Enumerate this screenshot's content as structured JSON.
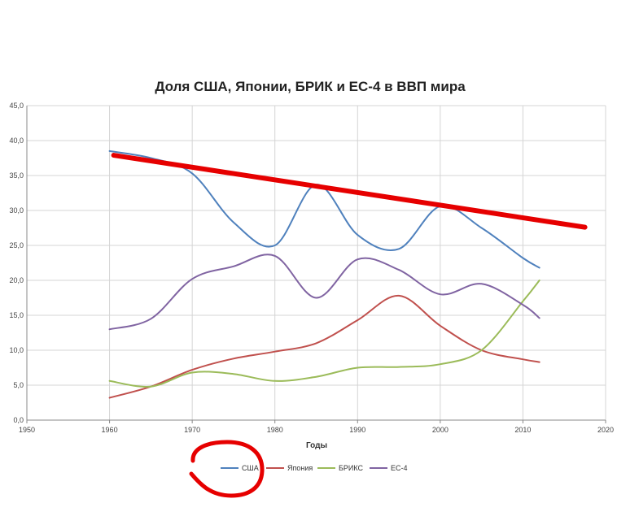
{
  "chart_data": {
    "type": "line",
    "title": "Доля США, Японии, БРИК и ЕС-4 в ВВП мира",
    "xlabel": "Годы",
    "ylabel": "",
    "xlim": [
      1950,
      2020
    ],
    "ylim": [
      0,
      45
    ],
    "x_ticks": [
      "1950",
      "1960",
      "1970",
      "1980",
      "1990",
      "2000",
      "2010",
      "2020"
    ],
    "y_ticks": [
      "0,0",
      "5,0",
      "10,0",
      "15,0",
      "20,0",
      "25,0",
      "30,0",
      "35,0",
      "40,0",
      "45,0"
    ],
    "grid": true,
    "legend_position": "bottom",
    "series": [
      {
        "name": "США",
        "color": "#4f81bd",
        "x": [
          1960,
          1965,
          1970,
          1975,
          1980,
          1985,
          1990,
          1995,
          2000,
          2005,
          2010,
          2012
        ],
        "y": [
          38.5,
          37.5,
          35.3,
          28.3,
          25.0,
          33.7,
          26.5,
          24.5,
          30.6,
          27.5,
          23.2,
          21.8
        ]
      },
      {
        "name": "Япония",
        "color": "#c0504d",
        "x": [
          1960,
          1965,
          1970,
          1975,
          1980,
          1985,
          1990,
          1995,
          2000,
          2005,
          2010,
          2012
        ],
        "y": [
          3.2,
          4.8,
          7.2,
          8.8,
          9.8,
          11.0,
          14.3,
          17.8,
          13.5,
          10.0,
          8.7,
          8.3
        ]
      },
      {
        "name": "БРИКС",
        "color": "#9bbb59",
        "x": [
          1960,
          1965,
          1970,
          1975,
          1980,
          1985,
          1990,
          1995,
          2000,
          2005,
          2010,
          2012
        ],
        "y": [
          5.6,
          4.8,
          6.8,
          6.6,
          5.6,
          6.2,
          7.5,
          7.6,
          8.0,
          10.0,
          17.0,
          20.0
        ]
      },
      {
        "name": "ЕС-4",
        "color": "#8064a2",
        "x": [
          1960,
          1965,
          1970,
          1975,
          1980,
          1985,
          1990,
          1995,
          2000,
          2005,
          2010,
          2012
        ],
        "y": [
          13.0,
          14.5,
          20.2,
          22.0,
          23.5,
          17.5,
          23.0,
          21.5,
          18.0,
          19.5,
          16.5,
          14.6
        ]
      }
    ],
    "annotations": [
      {
        "type": "trend-line",
        "color": "#e60000",
        "x": [
          1960.5,
          2017.5
        ],
        "y": [
          37.9,
          27.6
        ]
      },
      {
        "type": "circle",
        "color": "#e60000",
        "around": "legend-entry-США"
      }
    ]
  }
}
